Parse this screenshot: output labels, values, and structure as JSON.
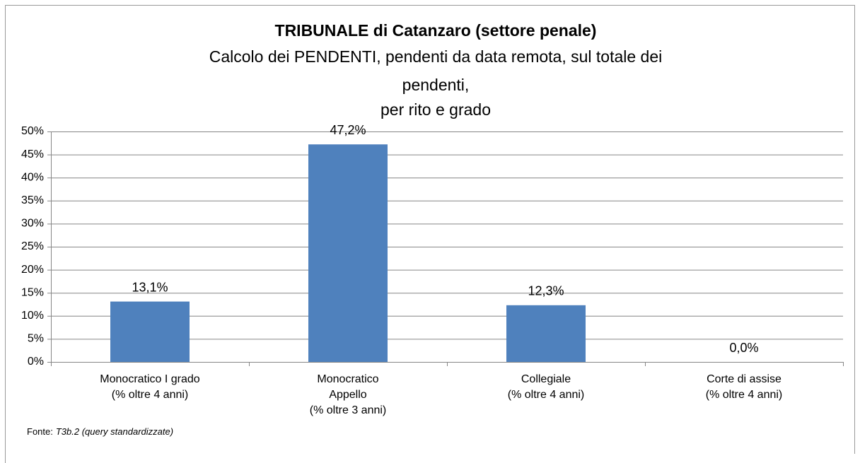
{
  "chart_data": {
    "type": "bar",
    "title": "TRIBUNALE di Catanzaro (settore penale)",
    "subtitle": [
      "Calcolo dei PENDENTI, pendenti da data remota, sul totale dei",
      "pendenti,",
      "per rito e grado"
    ],
    "categories": [
      [
        "Monocratico I grado",
        "(% oltre 4 anni)"
      ],
      [
        "Monocratico",
        "Appello",
        "(% oltre 3 anni)"
      ],
      [
        "Collegiale",
        "(% oltre 4 anni)"
      ],
      [
        "Corte di assise",
        "(% oltre 4 anni)"
      ]
    ],
    "values": [
      13.1,
      47.2,
      12.3,
      0.0
    ],
    "value_labels": [
      "13,1%",
      "47,2%",
      "12,3%",
      "0,0%"
    ],
    "color": "#4f81bd",
    "ylim": [
      0,
      50
    ],
    "yticks": [
      {
        "value": 0,
        "label": "0%"
      },
      {
        "value": 5,
        "label": "5%"
      },
      {
        "value": 10,
        "label": "10%"
      },
      {
        "value": 15,
        "label": "15%"
      },
      {
        "value": 20,
        "label": "20%"
      },
      {
        "value": 25,
        "label": "25%"
      },
      {
        "value": 30,
        "label": "30%"
      },
      {
        "value": 35,
        "label": "35%"
      },
      {
        "value": 40,
        "label": "40%"
      },
      {
        "value": 45,
        "label": "45%"
      },
      {
        "value": 50,
        "label": "50%"
      }
    ],
    "grid": true,
    "source": {
      "label": "Fonte:",
      "text": "T3b.2 (query standardizzate)"
    }
  }
}
